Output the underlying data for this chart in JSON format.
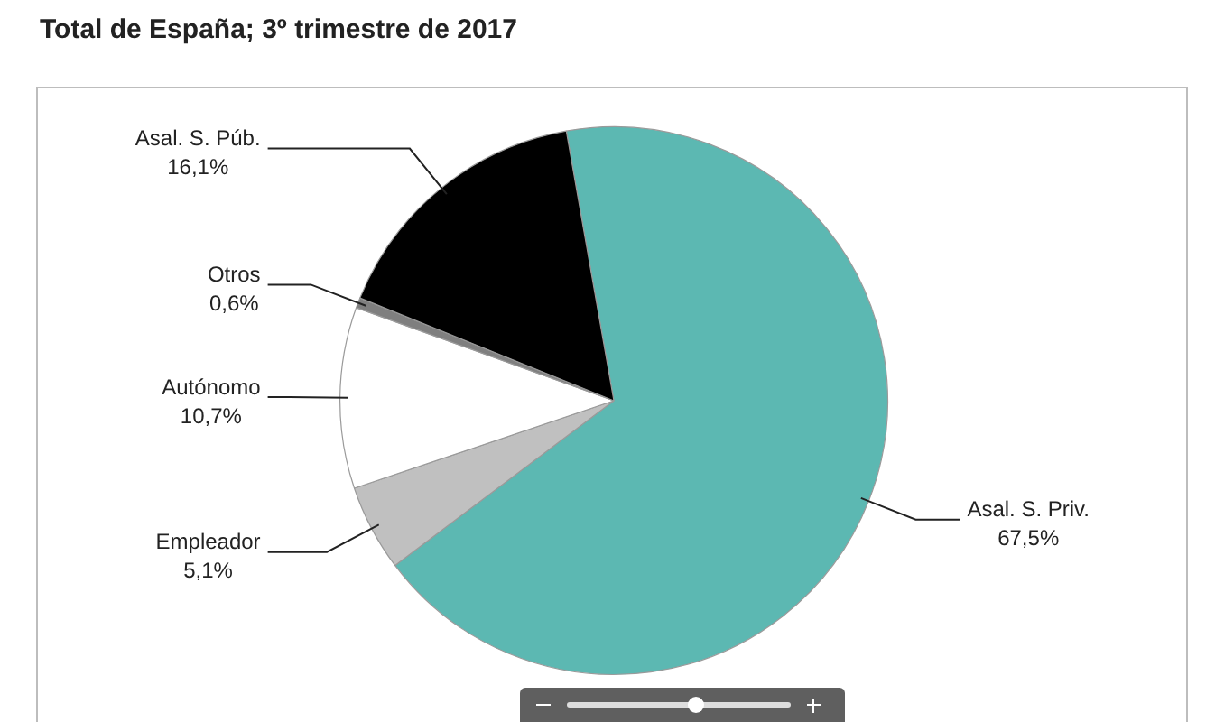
{
  "chart_data": {
    "type": "pie",
    "title": "Total de España; 3º trimestre de 2017",
    "categories": [
      "Asal. S. Priv.",
      "Empleador",
      "Autónomo",
      "Otros",
      "Asal. S. Púb."
    ],
    "values": [
      67.5,
      5.1,
      10.7,
      0.6,
      16.1
    ],
    "value_labels": [
      "67,5%",
      "5,1%",
      "10,7%",
      "0,6%",
      "16,1%"
    ],
    "colors": [
      "#5cb8b2",
      "#c0c0c0",
      "#ffffff",
      "#7f7f7f",
      "#000000"
    ],
    "legend": false
  }
}
